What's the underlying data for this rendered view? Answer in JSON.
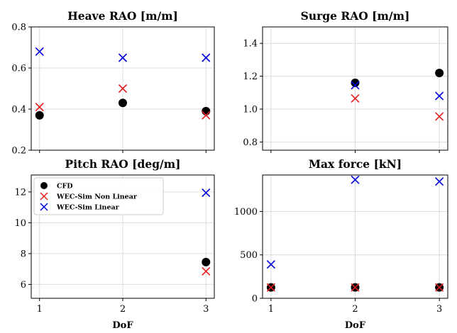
{
  "colors": {
    "cfd": "#000000",
    "nonlinear": "#e41a1c",
    "linear": "#0000dd"
  },
  "legend": {
    "location": "upper-left of Pitch RAO panel",
    "entries": [
      {
        "label": "CFD",
        "marker": "circle",
        "color": "#000000"
      },
      {
        "label": "WEC-Sim Non Linear",
        "marker": "x",
        "color": "#e41a1c"
      },
      {
        "label": "WEC-Sim Linear",
        "marker": "x",
        "color": "#0000dd"
      }
    ]
  },
  "chart_data": [
    {
      "type": "scatter",
      "title": "Heave RAO [m/m]",
      "xlabel": "",
      "x": [
        1,
        2,
        3
      ],
      "xticks": [
        "1",
        "2",
        "3"
      ],
      "xlim": [
        0.9,
        3.1
      ],
      "ylim": [
        0.2,
        0.8
      ],
      "yticks": [
        0.2,
        0.4,
        0.6,
        0.8
      ],
      "ytick_labels": [
        "0.2",
        "0.4",
        "0.6",
        "0.8"
      ],
      "grid": true,
      "series": [
        {
          "name": "CFD",
          "values": [
            0.37,
            0.43,
            0.39
          ]
        },
        {
          "name": "WEC-Sim Non Linear",
          "values": [
            0.41,
            0.5,
            0.37
          ]
        },
        {
          "name": "WEC-Sim Linear",
          "values": [
            0.68,
            0.65,
            0.65
          ]
        }
      ]
    },
    {
      "type": "scatter",
      "title": "Surge RAO [m/m]",
      "xlabel": "",
      "x": [
        1,
        2,
        3
      ],
      "xticks": [
        "1",
        "2",
        "3"
      ],
      "xlim": [
        0.9,
        3.1
      ],
      "ylim": [
        0.75,
        1.5
      ],
      "yticks": [
        0.8,
        1.0,
        1.2,
        1.4
      ],
      "ytick_labels": [
        "0.8",
        "1.0",
        "1.2",
        "1.4"
      ],
      "grid": true,
      "series": [
        {
          "name": "CFD",
          "values": [
            null,
            1.16,
            1.22
          ]
        },
        {
          "name": "WEC-Sim Non Linear",
          "values": [
            null,
            1.065,
            0.955
          ]
        },
        {
          "name": "WEC-Sim Linear",
          "values": [
            null,
            1.145,
            1.08
          ]
        }
      ]
    },
    {
      "type": "scatter",
      "title": "Pitch RAO [deg/m]",
      "xlabel": "DoF",
      "x": [
        1,
        2,
        3
      ],
      "xticks": [
        "1",
        "2",
        "3"
      ],
      "xlim": [
        0.9,
        3.1
      ],
      "ylim": [
        5.1,
        13.1
      ],
      "yticks": [
        6,
        8,
        10,
        12
      ],
      "ytick_labels": [
        "6",
        "8",
        "10",
        "12"
      ],
      "grid": true,
      "series": [
        {
          "name": "CFD",
          "values": [
            null,
            null,
            7.45
          ]
        },
        {
          "name": "WEC-Sim Non Linear",
          "values": [
            null,
            null,
            6.85
          ]
        },
        {
          "name": "WEC-Sim Linear",
          "values": [
            null,
            null,
            11.95
          ]
        }
      ]
    },
    {
      "type": "scatter",
      "title": "Max force [kN]",
      "xlabel": "DoF",
      "x": [
        1,
        2,
        3
      ],
      "xticks": [
        "1",
        "2",
        "3"
      ],
      "xlim": [
        0.9,
        3.1
      ],
      "ylim": [
        0,
        1420
      ],
      "yticks": [
        0,
        500,
        1000
      ],
      "ytick_labels": [
        "0",
        "500",
        "1000"
      ],
      "grid": true,
      "series": [
        {
          "name": "CFD",
          "values": [
            125,
            125,
            125
          ]
        },
        {
          "name": "WEC-Sim Non Linear",
          "values": [
            125,
            125,
            125
          ]
        },
        {
          "name": "WEC-Sim Linear",
          "values": [
            390,
            1365,
            1345
          ]
        }
      ]
    }
  ]
}
